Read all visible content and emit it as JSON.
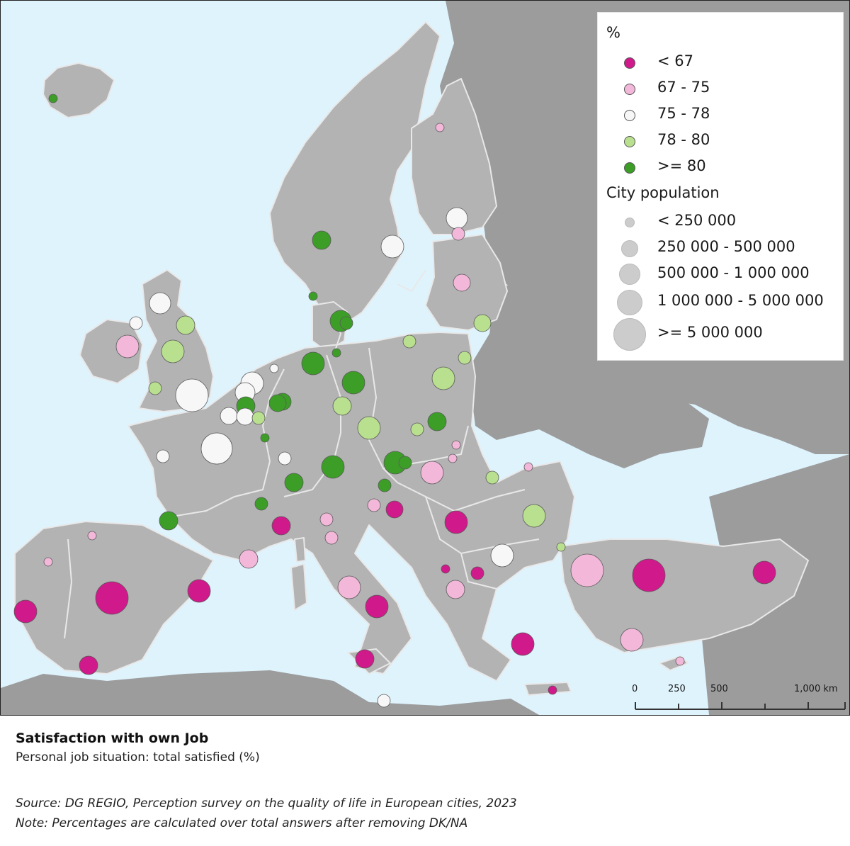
{
  "colors": {
    "sea": "#dff3fd",
    "land_in": "#b3b3b3",
    "land_out": "#9c9c9c",
    "border": "#e8e8e8",
    "classes": [
      "#d0198a",
      "#f3b8d9",
      "#f7f7f7",
      "#b9e08f",
      "#3c9e27"
    ]
  },
  "legend": {
    "pct_title": "%",
    "classes": [
      {
        "label": "< 67",
        "color": "#d0198a"
      },
      {
        "label": "67 - 75",
        "color": "#f3b8d9"
      },
      {
        "label": "75 - 78",
        "color": "#f7f7f7"
      },
      {
        "label": "78 - 80",
        "color": "#b9e08f"
      },
      {
        "label": ">= 80",
        "color": "#3c9e27"
      }
    ],
    "pop_title": "City population",
    "sizes": [
      {
        "label": "< 250 000"
      },
      {
        "label": "250 000 - 500 000"
      },
      {
        "label": "500 000 - 1 000 000"
      },
      {
        "label": "1 000 000 - 5 000 000"
      },
      {
        "label": ">= 5 000 000"
      }
    ]
  },
  "scalebar": {
    "labels": [
      "0",
      "250",
      "500",
      "1,000 km"
    ]
  },
  "caption": {
    "title": "Satisfaction with own Job",
    "subtitle": "Personal job situation: total satisfied (%)",
    "source": "Source: DG REGIO, Perception survey on the quality of life in European cities, 2023",
    "note": "Note: Percentages are calculated over total answers after removing DK/NA"
  }
}
